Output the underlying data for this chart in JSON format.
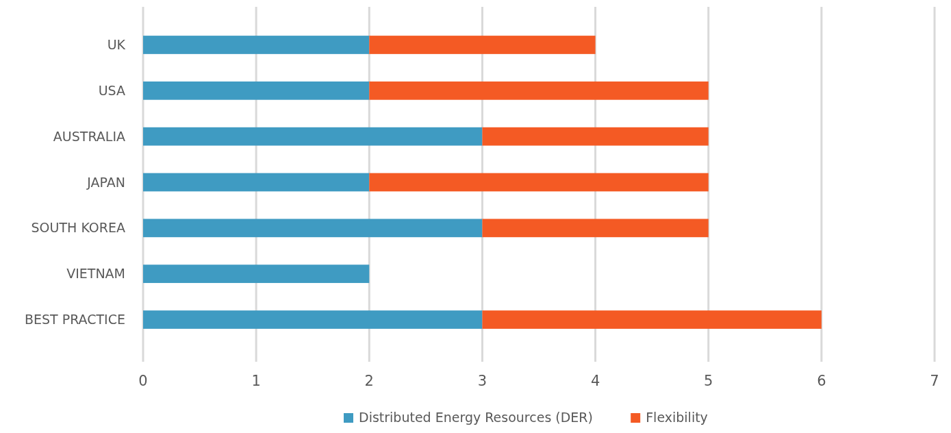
{
  "chart_data": {
    "type": "bar",
    "orientation": "horizontal",
    "stacked": true,
    "categories": [
      "UK",
      "USA",
      "AUSTRALIA",
      "JAPAN",
      "SOUTH KOREA",
      "VIETNAM",
      "BEST PRACTICE"
    ],
    "series": [
      {
        "name": "Distributed Energy Resources (DER)",
        "color": "#3f9bc2",
        "values": [
          2,
          2,
          3,
          2,
          3,
          2,
          3
        ]
      },
      {
        "name": "Flexibility",
        "color": "#f45a24",
        "values": [
          2,
          3,
          2,
          3,
          2,
          0,
          3
        ]
      }
    ],
    "xlim": [
      0,
      7
    ],
    "xticks": [
      0,
      1,
      2,
      3,
      4,
      5,
      6,
      7
    ],
    "grid": "x",
    "legend": "bottom"
  }
}
